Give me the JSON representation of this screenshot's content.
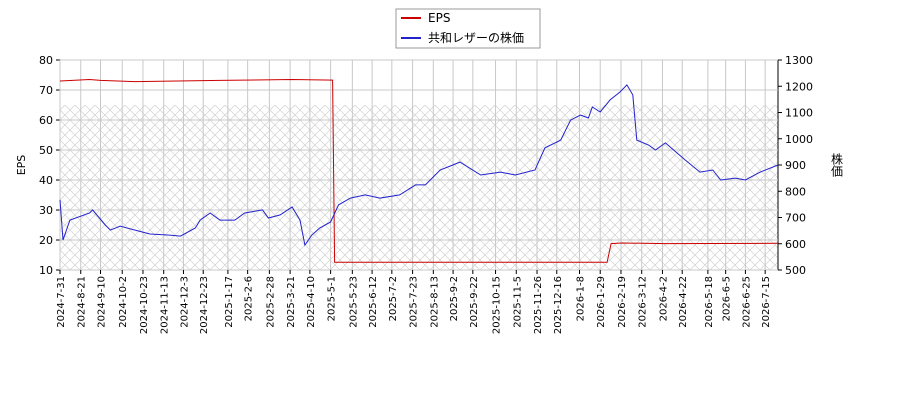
{
  "chart_data": {
    "type": "line",
    "xlim": [
      "2024-07-31",
      "2026-07-28"
    ],
    "xticks": [
      "2024-7-31",
      "2024-8-21",
      "2024-9-10",
      "2024-10-2",
      "2024-10-23",
      "2024-11-13",
      "2024-12-3",
      "2024-12-23",
      "2025-1-17",
      "2025-2-6",
      "2025-2-28",
      "2025-3-21",
      "2025-4-10",
      "2025-5-1",
      "2025-5-23",
      "2025-6-12",
      "2025-7-2",
      "2025-7-23",
      "2025-8-13",
      "2025-9-2",
      "2025-9-22",
      "2025-10-15",
      "2025-11-5",
      "2025-11-26",
      "2025-12-16",
      "2026-1-8",
      "2026-1-29",
      "2026-2-19",
      "2026-3-12",
      "2026-4-2",
      "2026-4-22",
      "2026-5-18",
      "2026-6-5",
      "2026-6-25",
      "2026-7-15"
    ],
    "ylabel": "EPS",
    "ylim": [
      10,
      80
    ],
    "yticks": [
      10,
      20,
      30,
      40,
      50,
      60,
      70,
      80
    ],
    "y2label": "株価",
    "y2lim": [
      500,
      1300
    ],
    "y2ticks": [
      500,
      600,
      700,
      800,
      900,
      1000,
      1100,
      1200,
      1300
    ],
    "grid": true,
    "legend": "top",
    "series": [
      {
        "name": "EPS",
        "color": "#cc0000",
        "x": [
          "2024-07-31",
          "2024-08-30",
          "2024-09-10",
          "2024-10-15",
          "2025-01-09",
          "2025-03-23",
          "2025-05-03",
          "2025-05-05",
          "2026-02-05",
          "2026-02-09",
          "2026-02-20",
          "2026-04-05",
          "2026-07-28"
        ],
        "values": [
          73,
          73.5,
          73.2,
          72.8,
          73.2,
          73.5,
          73.3,
          12.6,
          12.6,
          18.8,
          19.0,
          18.8,
          18.9
        ]
      },
      {
        "name": "共和レザーの株価",
        "color": "#2222cc",
        "axis": "y2",
        "x": [
          "2024-07-31",
          "2024-08-03",
          "2024-08-10",
          "2024-08-30",
          "2024-09-02",
          "2024-09-15",
          "2024-09-20",
          "2024-09-30",
          "2024-10-15",
          "2024-10-30",
          "2024-11-19",
          "2024-11-30",
          "2024-12-15",
          "2024-12-20",
          "2024-12-30",
          "2025-01-09",
          "2025-01-24",
          "2025-02-03",
          "2025-02-21",
          "2025-02-27",
          "2025-03-11",
          "2025-03-23",
          "2025-03-31",
          "2025-04-05",
          "2025-04-12",
          "2025-04-20",
          "2025-05-01",
          "2025-05-09",
          "2025-05-21",
          "2025-06-05",
          "2025-06-20",
          "2025-07-10",
          "2025-07-26",
          "2025-08-05",
          "2025-08-20",
          "2025-09-09",
          "2025-09-30",
          "2025-10-20",
          "2025-11-04",
          "2025-11-24",
          "2025-12-04",
          "2025-12-20",
          "2025-12-30",
          "2026-01-09",
          "2026-01-17",
          "2026-01-21",
          "2026-01-29",
          "2026-02-08",
          "2026-02-18",
          "2026-02-25",
          "2026-03-03",
          "2026-03-07",
          "2026-03-19",
          "2026-03-26",
          "2026-04-05",
          "2026-04-25",
          "2026-05-10",
          "2026-05-23",
          "2026-05-31",
          "2026-06-15",
          "2026-06-25",
          "2026-07-10",
          "2026-07-28"
        ],
        "values": [
          767,
          614,
          690,
          717,
          729,
          671,
          652,
          667,
          652,
          637,
          633,
          629,
          660,
          690,
          717,
          690,
          690,
          717,
          729,
          698,
          710,
          740,
          690,
          595,
          633,
          660,
          683,
          748,
          774,
          786,
          774,
          786,
          824,
          824,
          881,
          911,
          862,
          873,
          862,
          881,
          965,
          995,
          1071,
          1090,
          1079,
          1121,
          1102,
          1148,
          1178,
          1205,
          1167,
          995,
          976,
          957,
          984,
          919,
          873,
          881,
          843,
          850,
          843,
          873,
          900
        ]
      }
    ]
  }
}
